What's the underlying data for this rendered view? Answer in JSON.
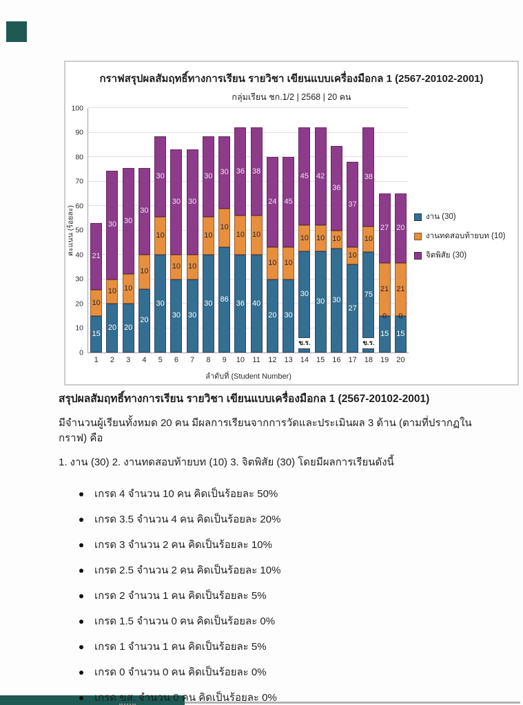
{
  "artifacts": {
    "corner_color": "#1e5a53",
    "bottom_bar_color": "#1e5a53"
  },
  "chart_data": {
    "type": "bar",
    "subtype": "stacked",
    "title": "กราฟสรุปผลสัมฤทธิ์ทางการเรียน รายวิชา เขียนแบบเครื่องมือกล 1 (2567-20102-2001)",
    "subtitle": "กลุ่มเรียน ชก.1/2 | 2568 | 20 คน",
    "xlabel": "ลำดับที่ (Student Number)",
    "ylabel": "คะแนน (ร้อยละ)",
    "ylim": [
      0,
      100
    ],
    "ytick_step": 10,
    "grid": true,
    "legend_position": "right",
    "absent_label": "ข.ร.",
    "series_meta": [
      {
        "name": "งาน (30)",
        "color": "#336f92",
        "label_color": "#ffffff"
      },
      {
        "name": "งานทดสอบท้ายบท (10)",
        "color": "#e78f3d",
        "label_color": "#2c2433"
      },
      {
        "name": "จิตพิสัย (30)",
        "color": "#8e3b8c",
        "label_color": "#f5e2f3"
      }
    ],
    "categories": [
      "1",
      "2",
      "3",
      "4",
      "5",
      "6",
      "7",
      "8",
      "9",
      "10",
      "11",
      "12",
      "13",
      "14",
      "15",
      "16",
      "17",
      "18",
      "19",
      "20"
    ],
    "students": [
      {
        "x": "1",
        "segs": [
          {
            "label": "15",
            "h": 15
          },
          {
            "label": "10",
            "h": 10.5
          },
          {
            "label": "21",
            "h": 27.5
          }
        ]
      },
      {
        "x": "2",
        "segs": [
          {
            "label": "20",
            "h": 20
          },
          {
            "label": "10",
            "h": 10
          },
          {
            "label": "30",
            "h": 44.5
          }
        ]
      },
      {
        "x": "3",
        "segs": [
          {
            "label": "20",
            "h": 20
          },
          {
            "label": "10",
            "h": 12
          },
          {
            "label": "30",
            "h": 43.5
          }
        ]
      },
      {
        "x": "4",
        "segs": [
          {
            "label": "20",
            "h": 26
          },
          {
            "label": "10",
            "h": 14
          },
          {
            "label": "30",
            "h": 35.5
          }
        ]
      },
      {
        "x": "5",
        "segs": [
          {
            "label": "30",
            "h": 40
          },
          {
            "label": "10",
            "h": 15.5
          },
          {
            "label": "30",
            "h": 33
          }
        ]
      },
      {
        "x": "6",
        "segs": [
          {
            "label": "30",
            "h": 30
          },
          {
            "label": "10",
            "h": 10
          },
          {
            "label": "30",
            "h": 43
          }
        ]
      },
      {
        "x": "7",
        "segs": [
          {
            "label": "30",
            "h": 30
          },
          {
            "label": "10",
            "h": 10
          },
          {
            "label": "30",
            "h": 43
          }
        ]
      },
      {
        "x": "8",
        "segs": [
          {
            "label": "30",
            "h": 40
          },
          {
            "label": "10",
            "h": 15.5
          },
          {
            "label": "30",
            "h": 33
          }
        ]
      },
      {
        "x": "9",
        "segs": [
          {
            "label": "86",
            "h": 43
          },
          {
            "label": "10",
            "h": 16
          },
          {
            "label": "30",
            "h": 29.5
          }
        ]
      },
      {
        "x": "10",
        "segs": [
          {
            "label": "36",
            "h": 40
          },
          {
            "label": "10",
            "h": 16
          },
          {
            "label": "36",
            "h": 36
          }
        ]
      },
      {
        "x": "11",
        "segs": [
          {
            "label": "40",
            "h": 40
          },
          {
            "label": "10",
            "h": 16
          },
          {
            "label": "38",
            "h": 36
          }
        ]
      },
      {
        "x": "12",
        "segs": [
          {
            "label": "20",
            "h": 30
          },
          {
            "label": "10",
            "h": 13
          },
          {
            "label": "24",
            "h": 37
          }
        ]
      },
      {
        "x": "13",
        "segs": [
          {
            "label": "30",
            "h": 30
          },
          {
            "label": "10",
            "h": 13
          },
          {
            "label": "45",
            "h": 37
          }
        ]
      },
      {
        "x": "14",
        "absent": true,
        "stub": 1.8,
        "offset": 6,
        "segs": [
          {
            "label": "30",
            "h": 35.5
          },
          {
            "label": "10",
            "h": 10.5
          },
          {
            "label": "45",
            "h": 40
          }
        ]
      },
      {
        "x": "15",
        "segs": [
          {
            "label": "30",
            "h": 41.5
          },
          {
            "label": "10",
            "h": 10.5
          },
          {
            "label": "42",
            "h": 40
          }
        ]
      },
      {
        "x": "16",
        "segs": [
          {
            "label": "30",
            "h": 42.5
          },
          {
            "label": "10",
            "h": 7.5
          },
          {
            "label": "36",
            "h": 34.5
          }
        ]
      },
      {
        "x": "17",
        "segs": [
          {
            "label": "27",
            "h": 36
          },
          {
            "label": "10",
            "h": 7
          },
          {
            "label": "37",
            "h": 35
          }
        ]
      },
      {
        "x": "18",
        "absent": true,
        "stub": 1.8,
        "offset": 6,
        "segs": [
          {
            "label": "75",
            "h": 35
          },
          {
            "label": "10",
            "h": 10.5
          },
          {
            "label": "38",
            "h": 40.5
          }
        ]
      },
      {
        "x": "19",
        "zero_label": "0",
        "segs": [
          {
            "label": "15",
            "h": 15
          },
          {
            "label": "21",
            "h": 21.5
          },
          {
            "label": "27",
            "h": 28.5
          }
        ]
      },
      {
        "x": "20",
        "zero_label": "0",
        "segs": [
          {
            "label": "15",
            "h": 15
          },
          {
            "label": "21",
            "h": 21.5
          },
          {
            "label": "20",
            "h": 28.5
          }
        ]
      }
    ]
  },
  "summary": {
    "heading": "สรุปผลสัมฤทธิ์ทางการเรียน รายวิชา เขียนแบบเครื่องมือกล 1 (2567-20102-2001)",
    "line1": "มีจำนวนผู้เรียนทั้งหมด 20 คน มีผลการเรียนจากการวัดและประเมินผล 3 ด้าน (ตามที่ปรากฏในกราฟ) คือ",
    "line2": "1. งาน (30)  2. งานทดสอบท้ายบท (10)  3. จิตพิสัย (30) โดยมีผลการเรียนดังนี้",
    "bullets": [
      {
        "text": "เกรด 4 จำนวน 10 คน คิดเป็นร้อยละ 50%"
      },
      {
        "text": "เกรด 3.5 จำนวน 4 คน คิดเป็นร้อยละ 20%"
      },
      {
        "text": "เกรด 3 จำนวน 2 คน คิดเป็นร้อยละ 10%"
      },
      {
        "text": "เกรด 2.5 จำนวน 2 คน คิดเป็นร้อยละ 10%"
      },
      {
        "text": "เกรด 2 จำนวน 1 คน คิดเป็นร้อยละ 5%"
      },
      {
        "text": "เกรด 1.5 จำนวน 0 คน คิดเป็นร้อยละ 0%"
      },
      {
        "text": "เกรด 1 จำนวน 1 คน คิดเป็นร้อยละ 5%"
      },
      {
        "text": "เกรด 0 จำนวน 0 คน คิดเป็นร้อยละ 0%"
      },
      {
        "before": "เกรด ",
        "underlined": "ขส.",
        "after": " จำนวน 0 คน คิดเป็นร้อยละ 0%"
      }
    ]
  }
}
